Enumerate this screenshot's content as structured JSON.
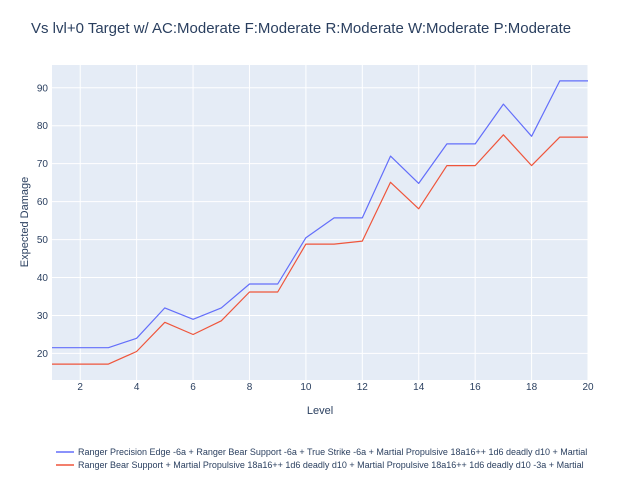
{
  "chart_data": {
    "type": "line",
    "title": "Vs lvl+0 Target w/ AC:Moderate F:Moderate R:Moderate W:Moderate P:Moderate",
    "xlabel": "Level",
    "ylabel": "Expected Damage",
    "xlim": [
      1,
      20
    ],
    "ylim": [
      13,
      96
    ],
    "x_ticks": [
      2,
      4,
      6,
      8,
      10,
      12,
      14,
      16,
      18,
      20
    ],
    "y_ticks": [
      20,
      30,
      40,
      50,
      60,
      70,
      80,
      90
    ],
    "grid": true,
    "legend_position": "bottom",
    "x": [
      1,
      2,
      3,
      4,
      5,
      6,
      7,
      8,
      9,
      10,
      11,
      12,
      13,
      14,
      15,
      16,
      17,
      18,
      19,
      20
    ],
    "series": [
      {
        "name": "Ranger Precision Edge -6a + Ranger Bear Support -6a + True Strike -6a + Martial Propulsive 18a16++ 1d6 deadly d10 + Martial",
        "color": "#636efa",
        "values": [
          21.5,
          21.5,
          21.5,
          24,
          32,
          29,
          32,
          38.3,
          38.3,
          50.5,
          55.7,
          55.7,
          72,
          64.8,
          75.2,
          75.2,
          85.7,
          77.2,
          91.8,
          91.8
        ]
      },
      {
        "name": "Ranger Bear Support + Martial Propulsive 18a16++ 1d6 deadly d10 + Martial Propulsive 18a16++ 1d6 deadly d10 -3a + Martial",
        "color": "#ef553b",
        "values": [
          17.2,
          17.2,
          17.2,
          20.5,
          28.2,
          25,
          28.6,
          36.2,
          36.2,
          48.8,
          48.8,
          49.6,
          65.1,
          58.1,
          69.5,
          69.5,
          77.6,
          69.5,
          77,
          77
        ]
      }
    ]
  }
}
